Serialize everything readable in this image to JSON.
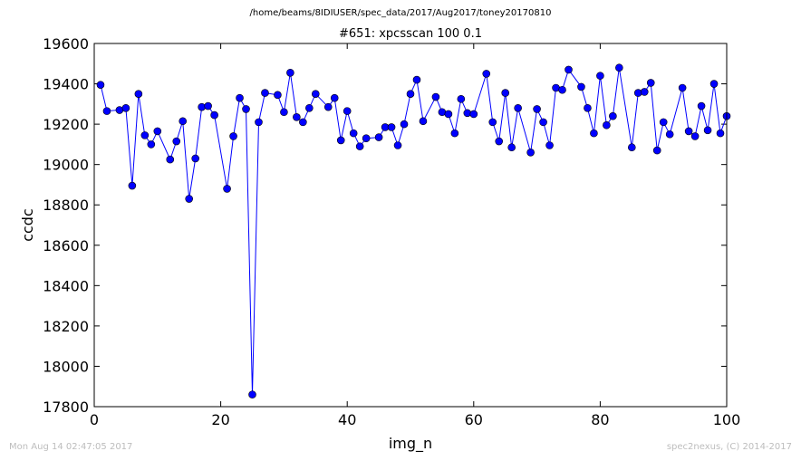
{
  "header": {
    "path": "/home/beams/8IDIUSER/spec_data/2017/Aug2017/toney20170810",
    "title": "#651: xpcsscan 100 0.1"
  },
  "footer": {
    "timestamp": "Mon Aug 14 02:47:05 2017",
    "credit": "spec2nexus, (C) 2014-2017"
  },
  "colors": {
    "series": "#0000ff",
    "footer_text": "#bdbdbd"
  },
  "chart_data": {
    "type": "line",
    "title": "#651: xpcsscan 100 0.1",
    "xlabel": "img_n",
    "ylabel": "ccdc",
    "xlim": [
      0,
      100
    ],
    "ylim": [
      17800,
      19600
    ],
    "xticks": [
      0,
      20,
      40,
      60,
      80,
      100
    ],
    "yticks": [
      17800,
      18000,
      18200,
      18400,
      18600,
      18800,
      19000,
      19200,
      19400,
      19600
    ],
    "grid": false,
    "markers": "circle",
    "series": [
      {
        "x": [
          1,
          2,
          4,
          5,
          6,
          7,
          8,
          9,
          10,
          12,
          13,
          14,
          15,
          16,
          17,
          18,
          19,
          21,
          22,
          23,
          24,
          25,
          26,
          27,
          29,
          30,
          31,
          32,
          33,
          34,
          35,
          37,
          38,
          39,
          40,
          41,
          42,
          43,
          45,
          46,
          47,
          48,
          49,
          50,
          51,
          52,
          54,
          55,
          56,
          57,
          58,
          59,
          60,
          62,
          63,
          64,
          65,
          66,
          67,
          69,
          70,
          71,
          72,
          73,
          74,
          75,
          77,
          78,
          79,
          80,
          81,
          82,
          83,
          85,
          86,
          87,
          88,
          89,
          90,
          91,
          93,
          94,
          95,
          96,
          97,
          98,
          99,
          100
        ],
        "y": [
          19395,
          19265,
          19270,
          19280,
          18895,
          19350,
          19145,
          19100,
          19165,
          19025,
          19115,
          19215,
          18830,
          19030,
          19285,
          19290,
          19245,
          18880,
          19140,
          19330,
          19275,
          17860,
          19210,
          19355,
          19345,
          19260,
          19455,
          19235,
          19210,
          19280,
          19350,
          19285,
          19330,
          19120,
          19265,
          19155,
          19090,
          19130,
          19135,
          19185,
          19185,
          19095,
          19200,
          19350,
          19420,
          19215,
          19335,
          19260,
          19250,
          19155,
          19325,
          19255,
          19250,
          19450,
          19210,
          19115,
          19355,
          19085,
          19280,
          19060,
          19275,
          19210,
          19095,
          19380,
          19370,
          19470,
          19385,
          19280,
          19155,
          19440,
          19195,
          19240,
          19480,
          19085,
          19355,
          19360,
          19405,
          19070,
          19210,
          19150,
          19380,
          19165,
          19140,
          19290,
          19170,
          19400,
          19155,
          19240
        ]
      }
    ]
  }
}
